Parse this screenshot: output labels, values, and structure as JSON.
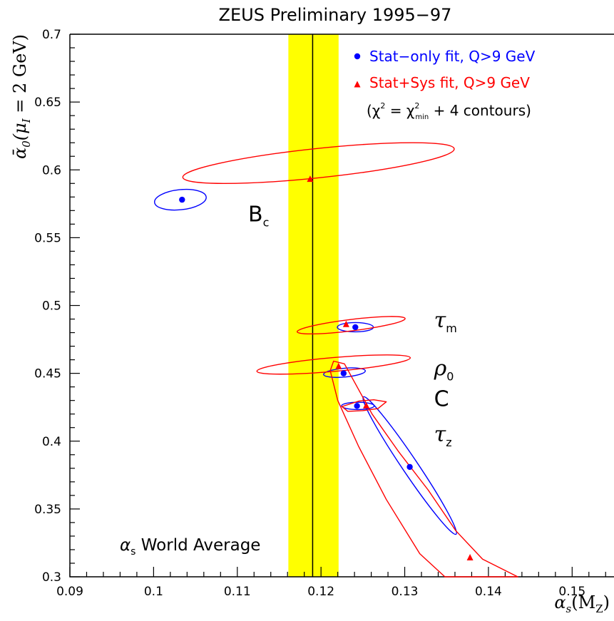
{
  "chart_data": {
    "type": "scatter",
    "title": "ZEUS Preliminary 1995−97",
    "xlabel": {
      "base": "α",
      "sub": "s",
      "rest": "(M",
      "sub2": "Z",
      "close": ")"
    },
    "ylabel": {
      "base": "ᾱ",
      "sub": "0",
      "rest": "(μ",
      "sub2": "I",
      "tail": " = 2 GeV)"
    },
    "xlim": [
      0.09,
      0.155
    ],
    "ylim": [
      0.3,
      0.7
    ],
    "x_ticks": [
      0.09,
      0.1,
      0.11,
      0.12,
      0.13,
      0.14,
      0.15
    ],
    "x_tick_labels": [
      "0.09",
      "0.1",
      "0.11",
      "0.12",
      "0.13",
      "0.14",
      "0.15"
    ],
    "y_ticks": [
      0.3,
      0.35,
      0.4,
      0.45,
      0.5,
      0.55,
      0.6,
      0.65,
      0.7
    ],
    "y_tick_labels": [
      "0.3",
      "0.35",
      "0.4",
      "0.45",
      "0.5",
      "0.55",
      "0.6",
      "0.65",
      "0.7"
    ],
    "world_average": {
      "value": 0.119,
      "band": [
        0.1161,
        0.1221
      ],
      "label": "α",
      "label_sub": "s",
      "label_rest": " World Average",
      "color": "#ffff00"
    },
    "series": [
      {
        "name": "Stat−only fit, Q>9 GeV",
        "color": "#0000ff",
        "marker": "circle",
        "points": [
          {
            "obs": "Bc",
            "x": 0.1034,
            "y": 0.578
          },
          {
            "obs": "Tm",
            "x": 0.1241,
            "y": 0.484
          },
          {
            "obs": "rho0",
            "x": 0.1227,
            "y": 0.45
          },
          {
            "obs": "C",
            "x": 0.1243,
            "y": 0.426
          },
          {
            "obs": "Tz",
            "x": 0.1306,
            "y": 0.381
          }
        ],
        "contours": [
          {
            "obs": "Bc",
            "cx": 0.1032,
            "cy": 0.578,
            "a": 0.0031,
            "b": 0.0074,
            "angle": -6
          },
          {
            "obs": "Tm",
            "cx": 0.1241,
            "cy": 0.484,
            "a": 0.00215,
            "b": 0.0034,
            "angle": 0
          },
          {
            "obs": "rho0",
            "cx": 0.1228,
            "cy": 0.4505,
            "a": 0.0025,
            "b": 0.00325,
            "angle": -5
          },
          {
            "obs": "C",
            "cx": 0.1244,
            "cy": 0.426,
            "a": 0.00195,
            "b": 0.0027,
            "angle": 0
          },
          {
            "obs": "Tz",
            "cx": 0.1306,
            "cy": 0.382,
            "a": 0.0099,
            "b": 0.0057,
            "angle": 56
          }
        ]
      },
      {
        "name": "Stat+Sys fit, Q>9 GeV",
        "color": "#ff0000",
        "marker": "triangle",
        "points": [
          {
            "obs": "Bc",
            "x": 0.1187,
            "y": 0.593
          },
          {
            "obs": "Tm",
            "x": 0.123,
            "y": 0.486
          },
          {
            "obs": "rho0",
            "x": 0.1221,
            "y": 0.455
          },
          {
            "obs": "C",
            "x": 0.1254,
            "y": 0.426
          },
          {
            "obs": "Tz",
            "x": 0.1378,
            "y": 0.314
          }
        ],
        "contours": [
          {
            "obs": "Bc",
            "cx": 0.1197,
            "cy": 0.605,
            "a": 0.0163,
            "b": 0.0108,
            "angle": -6
          },
          {
            "obs": "Tm",
            "cx": 0.1236,
            "cy": 0.4855,
            "a": 0.0065,
            "b": 0.0042,
            "angle": -7
          },
          {
            "obs": "rho0",
            "cx": 0.1215,
            "cy": 0.4565,
            "a": 0.0092,
            "b": 0.0051,
            "angle": -5
          }
        ],
        "polygons": [
          {
            "obs": "C",
            "points": [
              [
                0.1225,
                0.4255
              ],
              [
                0.1245,
                0.4295
              ],
              [
                0.1263,
                0.4305
              ],
              [
                0.1278,
                0.429
              ],
              [
                0.1268,
                0.424
              ],
              [
                0.125,
                0.4225
              ],
              [
                0.1232,
                0.422
              ]
            ]
          },
          {
            "obs": "Tz",
            "points": [
              [
                0.1215,
                0.459
              ],
              [
                0.1228,
                0.457
              ],
              [
                0.1261,
                0.42
              ],
              [
                0.1293,
                0.392
              ],
              [
                0.1328,
                0.364
              ],
              [
                0.1361,
                0.334
              ],
              [
                0.1393,
                0.313
              ],
              [
                0.1435,
                0.3
              ],
              [
                0.1348,
                0.3
              ],
              [
                0.1318,
                0.317
              ],
              [
                0.1278,
                0.357
              ],
              [
                0.1245,
                0.396
              ],
              [
                0.122,
                0.43
              ],
              [
                0.1211,
                0.452
              ]
            ]
          }
        ]
      }
    ],
    "observables": [
      {
        "key": "Bc",
        "text": "B",
        "sub": "c",
        "style": "roman",
        "x": 0.1113,
        "y": 0.562
      },
      {
        "key": "Tm",
        "text": "τ",
        "sub": "m",
        "style": "italic",
        "x": 0.1335,
        "y": 0.484
      },
      {
        "key": "rho0",
        "text": "ρ",
        "sub": "0",
        "style": "italic",
        "x": 0.1335,
        "y": 0.4485
      },
      {
        "key": "C",
        "text": "C",
        "sub": "",
        "style": "roman",
        "x": 0.1335,
        "y": 0.426
      },
      {
        "key": "Tz",
        "text": "τ",
        "sub": "z",
        "style": "italic",
        "x": 0.1335,
        "y": 0.4
      }
    ],
    "legend": {
      "placement": "top-right",
      "contour_note": {
        "open": "(χ",
        "sup": "2",
        "eq": " = χ",
        "sup2": "2",
        "sub2": "min",
        "rest": " + 4 contours)"
      }
    }
  }
}
